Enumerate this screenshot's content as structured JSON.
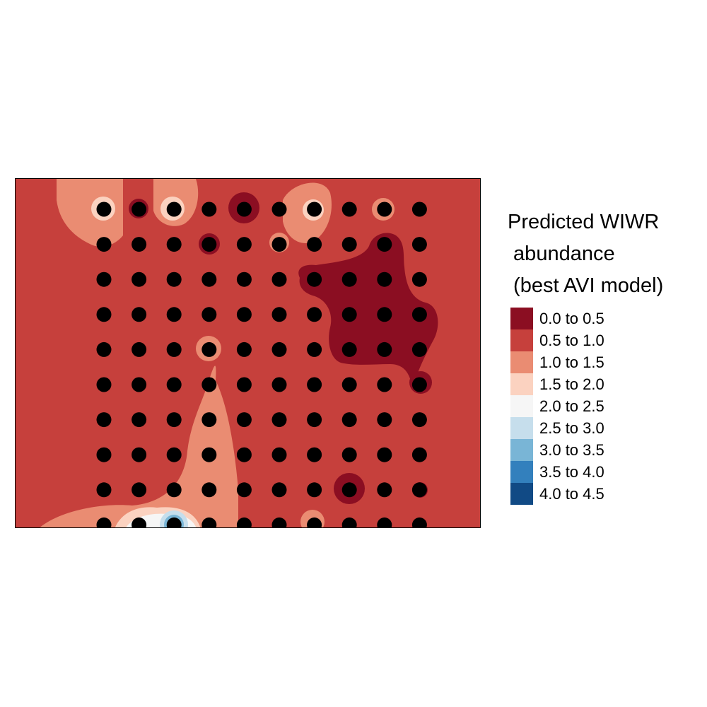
{
  "legend": {
    "title_lines": [
      "Predicted WIWR",
      " abundance",
      " (best AVI model)"
    ],
    "classes": [
      {
        "label": "0.0 to 0.5",
        "color": "#8b0e22"
      },
      {
        "label": "0.5 to 1.0",
        "color": "#c6403c"
      },
      {
        "label": "1.0 to 1.5",
        "color": "#ea8c72"
      },
      {
        "label": "1.5 to 2.0",
        "color": "#fbd2c0"
      },
      {
        "label": "2.0 to 2.5",
        "color": "#f6f6f6"
      },
      {
        "label": "2.5 to 3.0",
        "color": "#c6deec"
      },
      {
        "label": "3.0 to 3.5",
        "color": "#79b5d6"
      },
      {
        "label": "3.5 to 4.0",
        "color": "#3380bd"
      },
      {
        "label": "4.0 to 4.5",
        "color": "#114a85"
      }
    ]
  },
  "map": {
    "background_class": "0.5 to 1.0",
    "point_color": "#000000",
    "grid_columns": 10,
    "grid_rows": 10
  }
}
